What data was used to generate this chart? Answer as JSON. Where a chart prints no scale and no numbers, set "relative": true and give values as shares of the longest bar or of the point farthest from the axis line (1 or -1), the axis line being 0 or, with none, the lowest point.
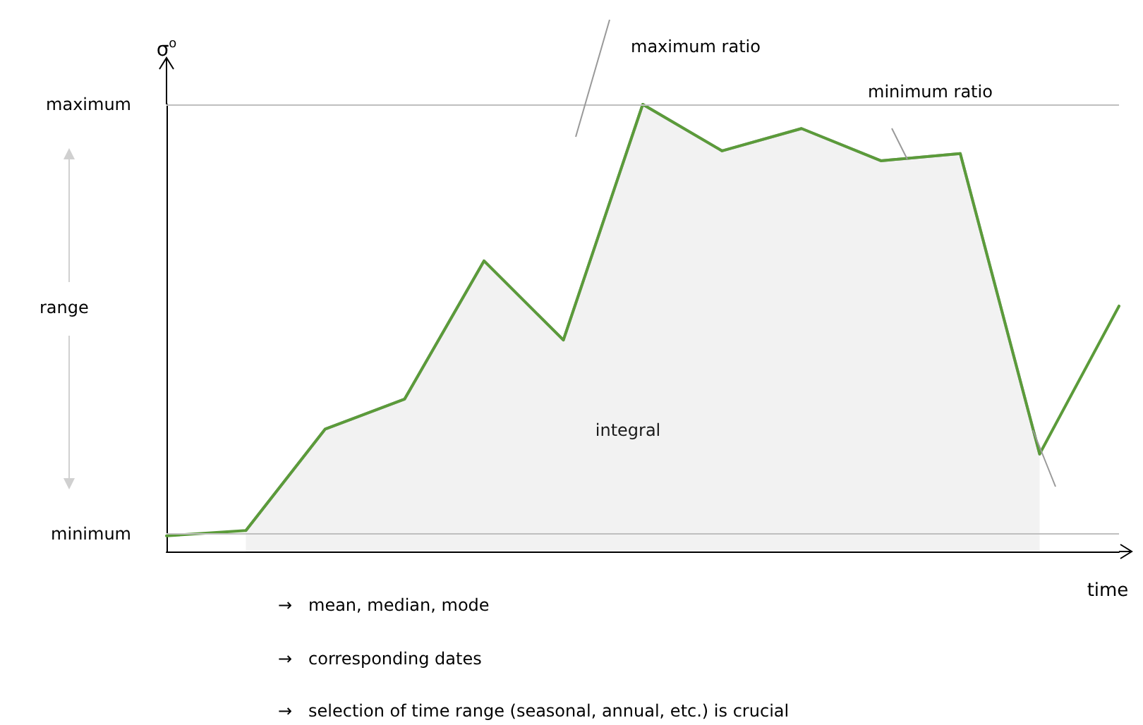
{
  "chart_data": {
    "type": "line",
    "relative": true,
    "ylabel": "σ$^{o}$",
    "xlabel": "time",
    "categories": [
      null,
      null,
      null,
      null,
      null,
      null,
      null,
      null,
      null,
      null,
      null,
      null,
      null
    ],
    "series": [
      {
        "type": "area",
        "color": "#a6a6a6",
        "values": [
          null,
          0.047,
          0.274,
          0.341,
          0.65,
          0.473,
          1,
          0.896,
          0.946,
          0.874,
          0.89,
          0.218,
          null
        ]
      },
      {
        "color": "#5b9b3a",
        "values": [
          0.035,
          0.047,
          0.274,
          0.341,
          0.65,
          0.473,
          1,
          0.896,
          0.946,
          0.874,
          0.89,
          0.218,
          0.549
        ]
      }
    ],
    "ref_lines": [
      {
        "axis": "y",
        "value": 1,
        "label": "maximum",
        "color": "#bfbfbf"
      },
      {
        "axis": "y",
        "value": 0.035,
        "label": "minimum",
        "color": "#bfbfbf"
      }
    ],
    "annotations": [
      "range",
      "integral",
      "maximum ratio",
      "minimum ratio",
      "→   mean, median, mode",
      "→   corresponding dates",
      "→   selection of time range (seasonal, annual, etc.) is crucial"
    ],
    "legend": false,
    "grid": false,
    "tick_labels": false,
    "marker": "none"
  }
}
